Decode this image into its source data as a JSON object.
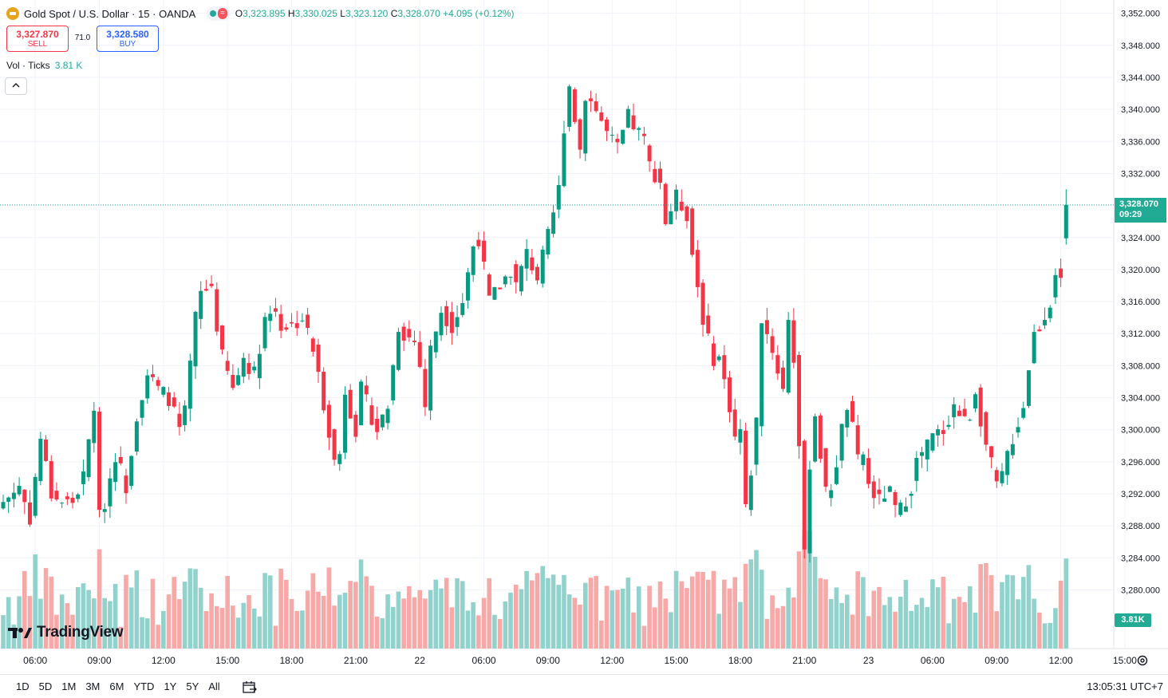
{
  "header": {
    "symbol_title": "Gold Spot / U.S. Dollar · 15 · OANDA",
    "pill_icon": "market-open-dot",
    "pill_label": "≈",
    "ohlc": {
      "o_label": "O",
      "o": "3,323.895",
      "h_label": "H",
      "h": "3,330.025",
      "l_label": "L",
      "l": "3,323.120",
      "c_label": "C",
      "c": "3,328.070",
      "change": "+4.095 (+0.12%)"
    }
  },
  "trade": {
    "sell_price": "3,327.870",
    "sell_label": "SELL",
    "spread": "71.0",
    "buy_price": "3,328.580",
    "buy_label": "BUY"
  },
  "volume_legend": {
    "label": "Vol · Ticks",
    "value": "3.81 K"
  },
  "collapse_icon": "chevron-up",
  "price_badge": {
    "price": "3,328.070",
    "countdown": "09:29"
  },
  "volume_badge": "3.81K",
  "brand": "TradingView",
  "bottom_bar": {
    "ranges": [
      "1D",
      "5D",
      "1M",
      "3M",
      "6M",
      "YTD",
      "1Y",
      "5Y",
      "All"
    ],
    "clock": "13:05:31 UTC+7"
  },
  "colors": {
    "up": "#089981",
    "down": "#f23645",
    "vol_up": "#92d2cc",
    "vol_down": "#f7a9a7",
    "accent": "#22ab94"
  },
  "chart_data": {
    "type": "candlestick",
    "y_ticks": [
      3280,
      3284,
      3288,
      3292,
      3296,
      3300,
      3304,
      3308,
      3312,
      3316,
      3320,
      3324,
      3328,
      3332,
      3336,
      3340,
      3344,
      3348,
      3352
    ],
    "y_tick_labels": [
      "3,280.000",
      "3,284.000",
      "3,288.000",
      "3,292.000",
      "3,296.000",
      "3,300.000",
      "3,304.000",
      "3,308.000",
      "3,312.000",
      "3,316.000",
      "3,320.000",
      "3,324.000",
      "3,328.000",
      "3,332.000",
      "3,336.000",
      "3,340.000",
      "3,344.000",
      "3,348.000",
      "3,352.000"
    ],
    "x_ticks": [
      {
        "label": "06:00",
        "bar": 6
      },
      {
        "label": "09:00",
        "bar": 18
      },
      {
        "label": "12:00",
        "bar": 30
      },
      {
        "label": "15:00",
        "bar": 42
      },
      {
        "label": "18:00",
        "bar": 54
      },
      {
        "label": "21:00",
        "bar": 66
      },
      {
        "label": "22",
        "bar": 78
      },
      {
        "label": "06:00",
        "bar": 90
      },
      {
        "label": "09:00",
        "bar": 102
      },
      {
        "label": "12:00",
        "bar": 114
      },
      {
        "label": "15:00",
        "bar": 126
      },
      {
        "label": "18:00",
        "bar": 138
      },
      {
        "label": "21:00",
        "bar": 150
      },
      {
        "label": "23",
        "bar": 162
      },
      {
        "label": "06:00",
        "bar": 174
      },
      {
        "label": "09:00",
        "bar": 186
      },
      {
        "label": "12:00",
        "bar": 198
      },
      {
        "label": "15:00",
        "bar": 210
      }
    ],
    "last_price": 3328.07,
    "ohlc_keypoints": [
      [
        0,
        3291
      ],
      [
        3,
        3293
      ],
      [
        5,
        3289
      ],
      [
        7,
        3299
      ],
      [
        9,
        3292
      ],
      [
        11,
        3291
      ],
      [
        13,
        3291
      ],
      [
        15,
        3294
      ],
      [
        17,
        3303
      ],
      [
        18,
        3289
      ],
      [
        19,
        3291
      ],
      [
        21,
        3297
      ],
      [
        23,
        3293
      ],
      [
        25,
        3302
      ],
      [
        27,
        3307
      ],
      [
        29,
        3305
      ],
      [
        31,
        3304
      ],
      [
        33,
        3300
      ],
      [
        34,
        3302
      ],
      [
        36,
        3314
      ],
      [
        37,
        3317
      ],
      [
        39,
        3318
      ],
      [
        40,
        3313
      ],
      [
        41,
        3309
      ],
      [
        43,
        3305
      ],
      [
        45,
        3309
      ],
      [
        47,
        3307
      ],
      [
        49,
        3314
      ],
      [
        51,
        3315
      ],
      [
        52,
        3313
      ],
      [
        54,
        3313
      ],
      [
        56,
        3314
      ],
      [
        58,
        3310
      ],
      [
        61,
        3300
      ],
      [
        62,
        3296
      ],
      [
        63,
        3297
      ],
      [
        64,
        3305
      ],
      [
        66,
        3300
      ],
      [
        67,
        3305
      ],
      [
        70,
        3300
      ],
      [
        72,
        3303
      ],
      [
        74,
        3313
      ],
      [
        75,
        3312
      ],
      [
        77,
        3311
      ],
      [
        78,
        3308
      ],
      [
        79,
        3303
      ],
      [
        80,
        3310
      ],
      [
        82,
        3315
      ],
      [
        84,
        3313
      ],
      [
        86,
        3316
      ],
      [
        88,
        3323
      ],
      [
        89,
        3324
      ],
      [
        91,
        3316
      ],
      [
        93,
        3318
      ],
      [
        95,
        3320
      ],
      [
        96,
        3318
      ],
      [
        98,
        3322
      ],
      [
        100,
        3319
      ],
      [
        102,
        3324
      ],
      [
        104,
        3330
      ],
      [
        105,
        3338
      ],
      [
        106,
        3343
      ],
      [
        107,
        3339
      ],
      [
        108,
        3335
      ],
      [
        109,
        3342
      ],
      [
        111,
        3340
      ],
      [
        113,
        3337
      ],
      [
        115,
        3335
      ],
      [
        117,
        3339
      ],
      [
        118,
        3338
      ],
      [
        120,
        3336
      ],
      [
        121,
        3333
      ],
      [
        123,
        3331
      ],
      [
        124,
        3326
      ],
      [
        126,
        3329
      ],
      [
        128,
        3327
      ],
      [
        129,
        3322
      ],
      [
        130,
        3318
      ],
      [
        131,
        3314
      ],
      [
        132,
        3311
      ],
      [
        133,
        3309
      ],
      [
        134,
        3309
      ],
      [
        136,
        3303
      ],
      [
        137,
        3299
      ],
      [
        138,
        3300
      ],
      [
        139,
        3290
      ],
      [
        140,
        3295
      ],
      [
        141,
        3301
      ],
      [
        142,
        3314
      ],
      [
        144,
        3310
      ],
      [
        146,
        3305
      ],
      [
        147,
        3314
      ],
      [
        148,
        3309
      ],
      [
        149,
        3298
      ],
      [
        150,
        3284
      ],
      [
        151,
        3296
      ],
      [
        152,
        3302
      ],
      [
        153,
        3297
      ],
      [
        154,
        3292
      ],
      [
        155,
        3293
      ],
      [
        156,
        3296
      ],
      [
        157,
        3300
      ],
      [
        158,
        3303
      ],
      [
        159,
        3300
      ],
      [
        160,
        3296
      ],
      [
        161,
        3297
      ],
      [
        162,
        3293
      ],
      [
        164,
        3291
      ],
      [
        165,
        3292
      ],
      [
        166,
        3292
      ],
      [
        167,
        3290
      ],
      [
        168,
        3290
      ],
      [
        170,
        3293
      ],
      [
        171,
        3296
      ],
      [
        173,
        3298
      ],
      [
        174,
        3299
      ],
      [
        176,
        3300
      ],
      [
        178,
        3303
      ],
      [
        180,
        3301
      ],
      [
        181,
        3302
      ],
      [
        182,
        3305
      ],
      [
        184,
        3298
      ],
      [
        186,
        3293
      ],
      [
        187,
        3294
      ],
      [
        188,
        3297
      ],
      [
        190,
        3301
      ],
      [
        191,
        3303
      ],
      [
        192,
        3308
      ],
      [
        193,
        3312
      ],
      [
        194,
        3313
      ],
      [
        196,
        3316
      ],
      [
        197,
        3320
      ],
      [
        198,
        3318
      ],
      [
        199,
        3328.07
      ]
    ]
  }
}
